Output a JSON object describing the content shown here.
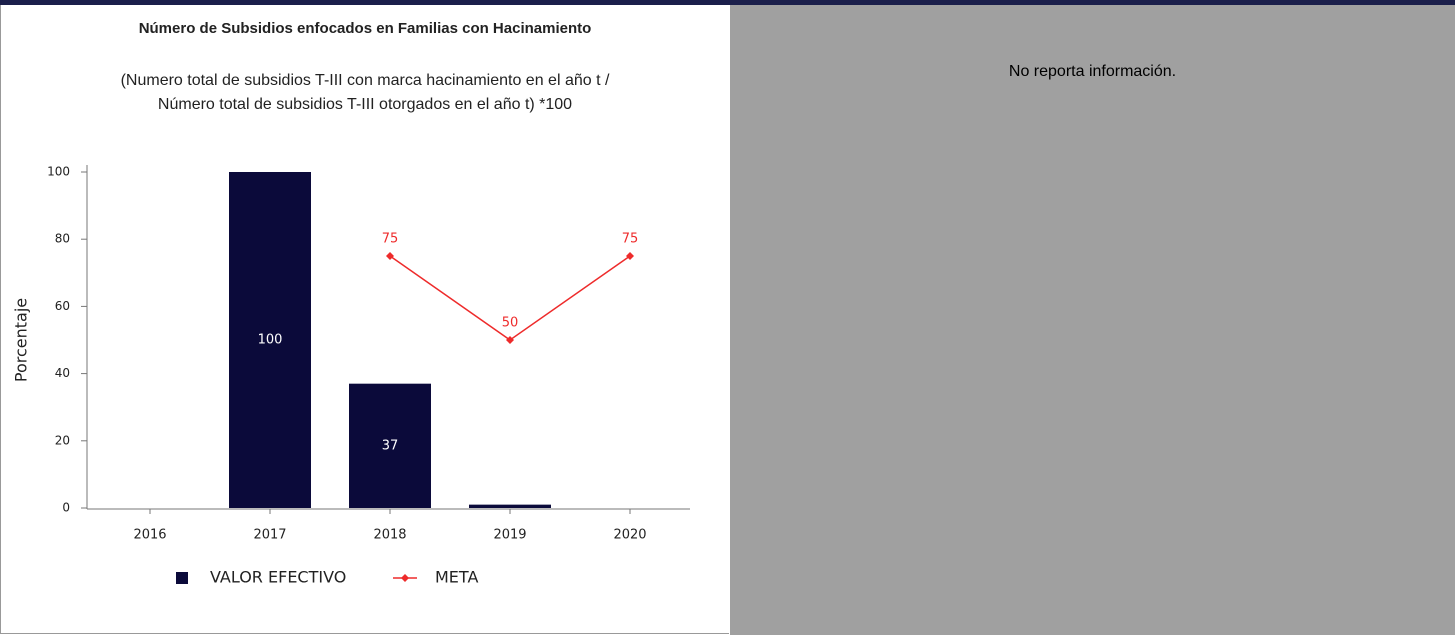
{
  "panel_note": "No reporta información.",
  "chart_data": {
    "type": "bar",
    "title": "Número de Subsidios enfocados en Familias con Hacinamiento",
    "subtitle": [
      "(Numero total de subsidios T-III con marca hacinamiento en el año t /",
      "Número total de subsidios T-III otorgados en el año t) *100"
    ],
    "ylabel": "Porcentaje",
    "categories": [
      "2016",
      "2017",
      "2018",
      "2019",
      "2020"
    ],
    "series": [
      {
        "name": "VALOR EFECTIVO",
        "type": "bar",
        "color": "#0b0a3a",
        "values": [
          null,
          100,
          37,
          1,
          null
        ],
        "value_labels": [
          null,
          "100",
          "37",
          null,
          null
        ]
      },
      {
        "name": "META",
        "type": "line",
        "color": "#ee2b2b",
        "values": [
          null,
          null,
          75,
          50,
          75
        ]
      }
    ],
    "ylim": [
      0,
      100
    ],
    "yticks": [
      0,
      20,
      40,
      60,
      80,
      100
    ]
  }
}
